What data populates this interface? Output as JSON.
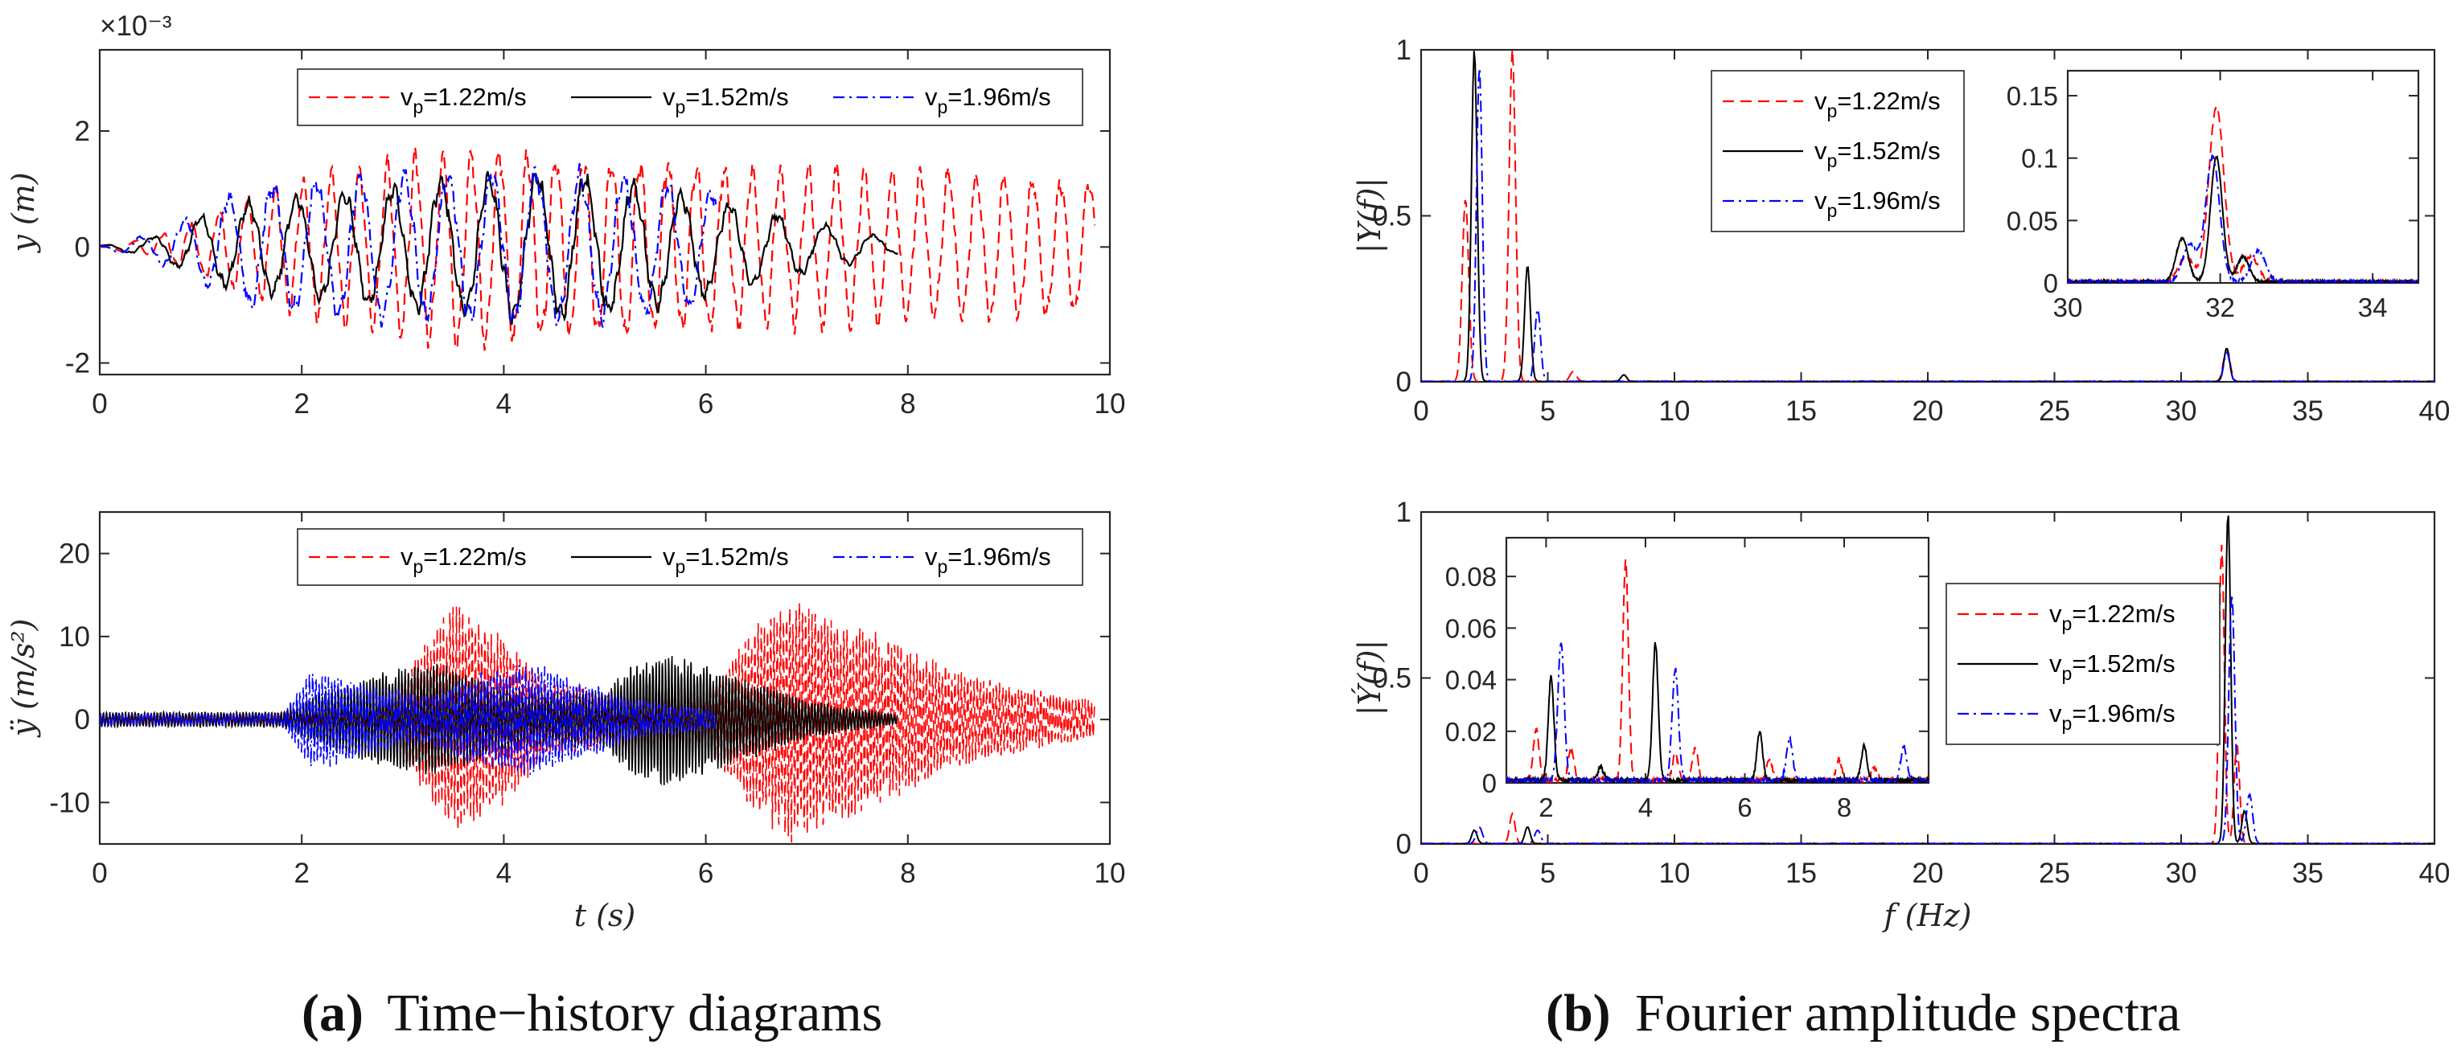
{
  "figure": {
    "captions": [
      {
        "label": "(a)",
        "text": "Time−history diagrams"
      },
      {
        "label": "(b)",
        "text": "Fourier amplitude spectra"
      }
    ]
  },
  "colors": {
    "vp_1_22": "#ff0000",
    "vp_1_52": "#000000",
    "vp_1_96": "#0000ff",
    "axis": "#262626"
  },
  "chart_data": [
    {
      "id": "disp_time",
      "type": "line",
      "xlabel": "",
      "ylabel": "y (m)",
      "exponent_label": "×10⁻³",
      "xlim": [
        0,
        10
      ],
      "ylim": [
        -2.2,
        3.4
      ],
      "xticks": [
        0,
        2,
        4,
        6,
        8,
        10
      ],
      "yticks": [
        -2,
        0,
        2
      ],
      "legend": {
        "placement": "top",
        "orientation": "horizontal"
      },
      "series": [
        {
          "name": "vp=1.22m/s",
          "style": "dashed",
          "t_end": 9.85,
          "envelope": [
            [
              0,
              0.02
            ],
            [
              0.5,
              0.15
            ],
            [
              1,
              0.45
            ],
            [
              1.5,
              0.8
            ],
            [
              2,
              1.1
            ],
            [
              2.5,
              1.25
            ],
            [
              3.5,
              1.6
            ],
            [
              4.5,
              1.55
            ],
            [
              5.5,
              1.45
            ],
            [
              6.5,
              1.3
            ],
            [
              7.5,
              1.25
            ],
            [
              8.5,
              1.2
            ],
            [
              9.85,
              1.1
            ]
          ],
          "dominant_freq": 3.6
        },
        {
          "name": "vp=1.52m/s",
          "style": "solid",
          "t_end": 7.9,
          "envelope": [
            [
              0,
              0.02
            ],
            [
              0.5,
              0.15
            ],
            [
              1,
              0.5
            ],
            [
              1.5,
              0.75
            ],
            [
              2.5,
              0.9
            ],
            [
              3.5,
              1.1
            ],
            [
              4.5,
              1.2
            ],
            [
              5.5,
              1.0
            ],
            [
              6.5,
              0.6
            ],
            [
              7.5,
              0.25
            ],
            [
              7.9,
              0.1
            ]
          ],
          "dominant_freq": 2.1
        },
        {
          "name": "vp=1.96m/s",
          "style": "dashdot",
          "t_end": 6.1,
          "envelope": [
            [
              0,
              0.02
            ],
            [
              0.5,
              0.2
            ],
            [
              1,
              0.6
            ],
            [
              1.5,
              1.0
            ],
            [
              2.5,
              1.15
            ],
            [
              3.5,
              1.2
            ],
            [
              4.5,
              1.25
            ],
            [
              5.5,
              1.1
            ],
            [
              6.1,
              0.9
            ]
          ],
          "dominant_freq": 2.3
        }
      ]
    },
    {
      "id": "acc_time",
      "type": "line",
      "xlabel": "t (s)",
      "ylabel": "ÿ (m/s²)",
      "xlim": [
        0,
        10
      ],
      "ylim": [
        -15,
        25
      ],
      "xticks": [
        0,
        2,
        4,
        6,
        8,
        10
      ],
      "yticks": [
        -10,
        0,
        10,
        20
      ],
      "legend": {
        "placement": "top",
        "orientation": "horizontal"
      },
      "series": [
        {
          "name": "vp=1.22m/s",
          "style": "dashed",
          "t_end": 9.85,
          "envelope": [
            [
              0,
              0.6
            ],
            [
              1.5,
              0.6
            ],
            [
              2.8,
              1.5
            ],
            [
              3.1,
              6
            ],
            [
              3.5,
              12
            ],
            [
              4,
              9
            ],
            [
              4.4,
              4
            ],
            [
              5,
              3
            ],
            [
              6,
              3
            ],
            [
              6.5,
              10
            ],
            [
              6.85,
              13
            ],
            [
              7.5,
              10
            ],
            [
              8.5,
              5
            ],
            [
              9.3,
              3
            ],
            [
              9.85,
              2
            ]
          ],
          "dominant_freq": 31.8
        },
        {
          "name": "vp=1.52m/s",
          "style": "solid",
          "t_end": 7.9,
          "envelope": [
            [
              0,
              0.8
            ],
            [
              1.8,
              0.8
            ],
            [
              2.2,
              3
            ],
            [
              2.8,
              5
            ],
            [
              3.3,
              6
            ],
            [
              4.2,
              3
            ],
            [
              5,
              3
            ],
            [
              5.3,
              6
            ],
            [
              5.6,
              7
            ],
            [
              6.2,
              5
            ],
            [
              7,
              2
            ],
            [
              7.9,
              0.5
            ]
          ],
          "dominant_freq": 31.8
        },
        {
          "name": "vp=1.96m/s",
          "style": "dashdot",
          "t_end": 6.1,
          "envelope": [
            [
              0,
              0.6
            ],
            [
              1.8,
              0.6
            ],
            [
              2.1,
              5.5
            ],
            [
              2.6,
              4
            ],
            [
              3.2,
              2.5
            ],
            [
              3.8,
              5
            ],
            [
              4.3,
              6
            ],
            [
              4.8,
              4
            ],
            [
              5.4,
              2
            ],
            [
              6.1,
              1
            ]
          ],
          "dominant_freq": 31.8
        }
      ]
    },
    {
      "id": "disp_fft",
      "type": "line",
      "xlabel": "",
      "ylabel": "|Y(f)|",
      "xlim": [
        0,
        40
      ],
      "ylim": [
        0,
        1
      ],
      "xticks": [
        0,
        5,
        10,
        15,
        20,
        25,
        30,
        35,
        40
      ],
      "yticks": [
        0,
        0.5,
        1
      ],
      "legend": {
        "placement": "top-center",
        "orientation": "vertical"
      },
      "series": [
        {
          "name": "vp=1.22m/s",
          "style": "dashed",
          "peaks": [
            [
              1.75,
              0.55
            ],
            [
              3.6,
              1.0
            ],
            [
              6.0,
              0.03
            ],
            [
              31.8,
              0.1
            ]
          ],
          "width": 0.18
        },
        {
          "name": "vp=1.52m/s",
          "style": "solid",
          "peaks": [
            [
              2.1,
              1.0
            ],
            [
              4.2,
              0.35
            ],
            [
              8.0,
              0.02
            ],
            [
              31.8,
              0.1
            ]
          ],
          "width": 0.16
        },
        {
          "name": "vp=1.96m/s",
          "style": "dashdot",
          "peaks": [
            [
              2.3,
              0.95
            ],
            [
              4.6,
              0.22
            ],
            [
              31.8,
              0.09
            ]
          ],
          "width": 0.16
        }
      ],
      "inset": {
        "xlim": [
          30,
          34.6
        ],
        "ylim": [
          0,
          0.17
        ],
        "xticks": [
          30,
          32,
          34
        ],
        "yticks": [
          0,
          0.05,
          0.1,
          0.15
        ],
        "series": [
          {
            "name": "vp=1.22m/s",
            "peaks": [
              [
                31.95,
                0.14
              ],
              [
                31.55,
                0.02
              ],
              [
                32.4,
                0.02
              ]
            ],
            "width": 0.14
          },
          {
            "name": "vp=1.52m/s",
            "peaks": [
              [
                31.95,
                0.1
              ],
              [
                31.5,
                0.035
              ],
              [
                32.3,
                0.02
              ]
            ],
            "width": 0.11
          },
          {
            "name": "vp=1.96m/s",
            "peaks": [
              [
                31.9,
                0.1
              ],
              [
                31.6,
                0.03
              ],
              [
                32.5,
                0.025
              ]
            ],
            "width": 0.13
          }
        ]
      }
    },
    {
      "id": "acc_fft",
      "type": "line",
      "xlabel": "f (Hz)",
      "ylabel": "|Ý(f)|",
      "xlim": [
        0,
        40
      ],
      "ylim": [
        0,
        1
      ],
      "xticks": [
        0,
        5,
        10,
        15,
        20,
        25,
        30,
        35,
        40
      ],
      "yticks": [
        0,
        0.5,
        1
      ],
      "legend": {
        "placement": "right",
        "orientation": "vertical"
      },
      "series": [
        {
          "name": "vp=1.22m/s",
          "style": "dashed",
          "peaks": [
            [
              3.6,
              0.09
            ],
            [
              31.6,
              0.9
            ],
            [
              32.2,
              0.3
            ]
          ],
          "width": 0.15
        },
        {
          "name": "vp=1.52m/s",
          "style": "solid",
          "peaks": [
            [
              2.1,
              0.04
            ],
            [
              4.2,
              0.05
            ],
            [
              31.85,
              1.0
            ],
            [
              32.5,
              0.1
            ]
          ],
          "width": 0.15
        },
        {
          "name": "vp=1.96m/s",
          "style": "dashdot",
          "peaks": [
            [
              2.3,
              0.05
            ],
            [
              4.6,
              0.04
            ],
            [
              32.0,
              0.75
            ],
            [
              32.7,
              0.15
            ]
          ],
          "width": 0.17
        }
      ],
      "inset": {
        "xlim": [
          1.2,
          9.7
        ],
        "ylim": [
          0,
          0.095
        ],
        "xticks": [
          2,
          4,
          6,
          8
        ],
        "yticks": [
          0,
          0.02,
          0.04,
          0.06,
          0.08
        ],
        "series": [
          {
            "name": "vp=1.22m/s",
            "peaks": [
              [
                1.8,
                0.02
              ],
              [
                2.5,
                0.012
              ],
              [
                3.6,
                0.085
              ],
              [
                4.6,
                0.01
              ],
              [
                5.0,
                0.012
              ],
              [
                6.5,
                0.008
              ],
              [
                7.9,
                0.008
              ],
              [
                8.6,
                0.005
              ]
            ],
            "width": 0.08
          },
          {
            "name": "vp=1.52m/s",
            "peaks": [
              [
                2.1,
                0.04
              ],
              [
                3.1,
                0.005
              ],
              [
                4.2,
                0.053
              ],
              [
                6.3,
                0.019
              ],
              [
                8.4,
                0.013
              ]
            ],
            "width": 0.08
          },
          {
            "name": "vp=1.96m/s",
            "peaks": [
              [
                2.3,
                0.054
              ],
              [
                4.6,
                0.043
              ],
              [
                6.9,
                0.016
              ],
              [
                9.2,
                0.013
              ]
            ],
            "width": 0.09
          }
        ]
      }
    }
  ]
}
